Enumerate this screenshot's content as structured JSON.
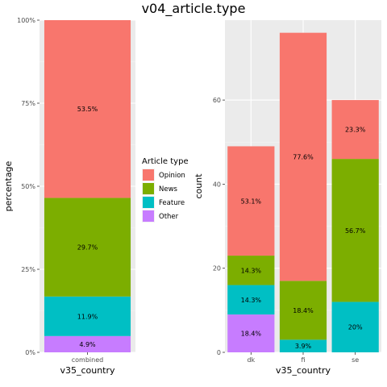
{
  "title": "v04_article.type",
  "colors": {
    "Opinion": "#F8766D",
    "News": "#7CAE00",
    "Feature": "#00BFC4",
    "Other": "#C77CFF"
  },
  "legend": {
    "title": "Article type",
    "items": [
      "Opinion",
      "News",
      "Feature",
      "Other"
    ],
    "placement": "center"
  },
  "chart_data": [
    {
      "type": "bar",
      "stacked": true,
      "xlabel": "v35_country",
      "ylabel": "percentage",
      "ylim": [
        0,
        100
      ],
      "yticks": [
        0,
        25,
        50,
        75,
        100
      ],
      "ytick_labels": [
        "0%",
        "25%",
        "50%",
        "75%",
        "100%"
      ],
      "categories": [
        "combined"
      ],
      "series": [
        {
          "name": "Other",
          "values": [
            4.9
          ],
          "labels": [
            "4.9%"
          ]
        },
        {
          "name": "Feature",
          "values": [
            11.9
          ],
          "labels": [
            "11.9%"
          ]
        },
        {
          "name": "News",
          "values": [
            29.7
          ],
          "labels": [
            "29.7%"
          ]
        },
        {
          "name": "Opinion",
          "values": [
            53.5
          ],
          "labels": [
            "53.5%"
          ]
        }
      ],
      "grid": true
    },
    {
      "type": "bar",
      "stacked": true,
      "xlabel": "v35_country",
      "ylabel": "count",
      "ylim": [
        0,
        79
      ],
      "yticks": [
        0,
        20,
        40,
        60
      ],
      "ytick_labels": [
        "0",
        "20",
        "40",
        "60"
      ],
      "categories": [
        "dk",
        "fi",
        "se"
      ],
      "series": [
        {
          "name": "Other",
          "values": [
            9,
            0,
            0
          ],
          "labels": [
            "18.4%",
            "",
            ""
          ]
        },
        {
          "name": "Feature",
          "values": [
            7,
            3,
            12
          ],
          "labels": [
            "14.3%",
            "3.9%",
            "20%"
          ]
        },
        {
          "name": "News",
          "values": [
            7,
            14,
            34
          ],
          "labels": [
            "14.3%",
            "18.4%",
            "56.7%"
          ]
        },
        {
          "name": "Opinion",
          "values": [
            26,
            59,
            14
          ],
          "labels": [
            "53.1%",
            "77.6%",
            "23.3%"
          ]
        }
      ],
      "grid": true
    }
  ]
}
